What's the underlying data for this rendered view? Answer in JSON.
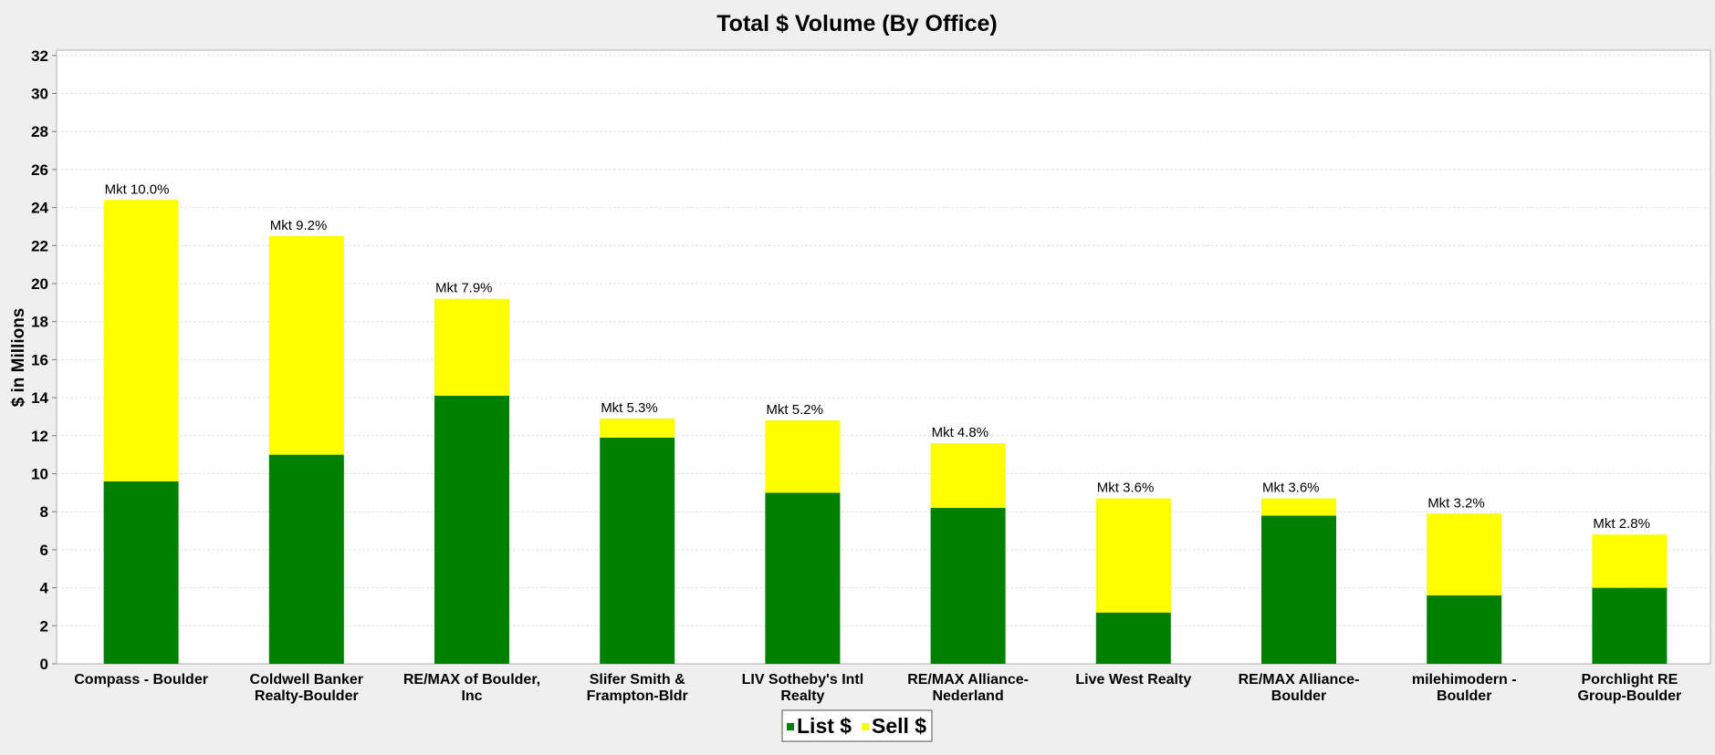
{
  "chart_data": {
    "type": "bar",
    "stacked": true,
    "title": "Total $ Volume (By Office)",
    "xlabel": "",
    "ylabel": "$ in Millions",
    "ylim": [
      0,
      32
    ],
    "yticks": [
      0,
      2,
      4,
      6,
      8,
      10,
      12,
      14,
      16,
      18,
      20,
      22,
      24,
      26,
      28,
      30,
      32
    ],
    "grid": true,
    "legend_position": "bottom-center",
    "categories": [
      [
        "Compass - Boulder"
      ],
      [
        "Coldwell Banker",
        "Realty-Boulder"
      ],
      [
        "RE/MAX of Boulder,",
        "Inc"
      ],
      [
        "Slifer Smith &",
        "Frampton-Bldr"
      ],
      [
        "LIV Sotheby's Intl",
        "Realty"
      ],
      [
        "RE/MAX Alliance-",
        "Nederland"
      ],
      [
        "Live West Realty"
      ],
      [
        "RE/MAX Alliance-",
        "Boulder"
      ],
      [
        "milehimodern -",
        "Boulder"
      ],
      [
        "Porchlight RE",
        "Group-Boulder"
      ]
    ],
    "series": [
      {
        "name": "List $",
        "color": "#008000",
        "values": [
          9.6,
          11.0,
          14.1,
          11.9,
          9.0,
          8.2,
          2.7,
          7.8,
          3.6,
          4.0
        ]
      },
      {
        "name": "Sell $",
        "color": "#ffff00",
        "values": [
          14.8,
          11.5,
          5.1,
          1.0,
          3.8,
          3.4,
          6.0,
          0.9,
          4.3,
          2.8
        ]
      }
    ],
    "annotations": [
      "Mkt 10.0%",
      "Mkt 9.2%",
      "Mkt 7.9%",
      "Mkt 5.3%",
      "Mkt 5.2%",
      "Mkt 4.8%",
      "Mkt 3.6%",
      "Mkt 3.6%",
      "Mkt 3.2%",
      "Mkt 2.8%"
    ]
  }
}
